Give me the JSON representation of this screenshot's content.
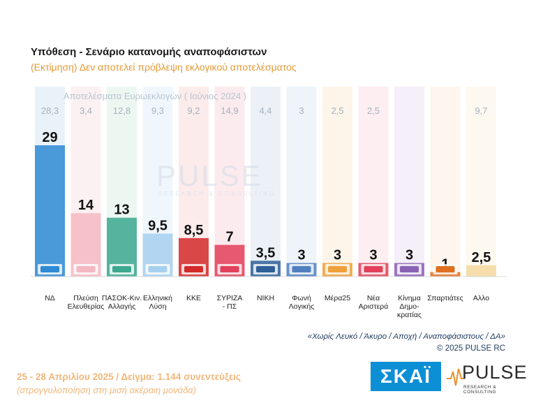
{
  "header": {
    "title": "Υπόθεση - Σενάριο κατανομής αναποφάσιστων",
    "subtitle": "(Εκτίμηση)   Δεν αποτελεί πρόβλεψη εκλογικού αποτελέσματος"
  },
  "chart_data": {
    "type": "bar",
    "euro_title": "Αποτελέσματα Ευρωεκλογών  ( Ιούνιος 2024 )",
    "categories": [
      "ΝΔ",
      "Πλεύση Ελευθερίας",
      "ΠΑΣΟΚ-Κιν. Αλλαγής",
      "Ελληνική Λύση",
      "ΚΚΕ",
      "ΣΥΡΙΖΑ - ΠΣ",
      "ΝΙΚΗ",
      "Φωνή Λογικής",
      "Μέρα25",
      "Νέα Αριστερά",
      "Κίνημα Δημοκρατίας",
      "Σπαρτιάτες",
      "Άλλο"
    ],
    "category_lines": [
      [
        "ΝΔ"
      ],
      [
        "Πλεύση",
        "Ελευθερίας"
      ],
      [
        "ΠΑΣΟΚ-Κιν.",
        "Αλλαγής"
      ],
      [
        "Ελληνική",
        "Λύση"
      ],
      [
        "ΚΚΕ"
      ],
      [
        "ΣΥΡΙΖΑ",
        "- ΠΣ"
      ],
      [
        "ΝΙΚΗ"
      ],
      [
        "Φωνή",
        "Λογικής"
      ],
      [
        "Μέρα25"
      ],
      [
        "Νέα",
        "Αριστερά"
      ],
      [
        "Κίνημα",
        "Δημο-",
        "κρατίας"
      ],
      [
        "Σπαρτιάτες"
      ],
      [
        "Αλλο"
      ]
    ],
    "values": [
      29,
      14,
      13,
      9.5,
      8.5,
      7,
      3.5,
      3,
      3,
      3,
      3,
      1,
      2.5
    ],
    "value_labels": [
      "29",
      "14",
      "13",
      "9,5",
      "8,5",
      "7",
      "3,5",
      "3",
      "3",
      "3",
      "3",
      "1",
      "2,5"
    ],
    "euro_values": [
      "28,3",
      "3,4",
      "12,8",
      "9,3",
      "9,2",
      "14,9",
      "4,4",
      "3",
      "2,5",
      "2,5",
      "",
      "",
      "9,7"
    ],
    "colors": [
      "#2e8ad4",
      "#f4b8c2",
      "#3ca88f",
      "#a7d0ee",
      "#d42a2a",
      "#e2405a",
      "#2f5f99",
      "#4f7fbf",
      "#f0a03a",
      "#e2405a",
      "#8a62b5",
      "#e07020",
      "#f3d9a0"
    ],
    "column_bg": [
      "#dce9f5",
      "#f9e6ea",
      "#dff1ea",
      "#e6f1fa",
      "#f9dede",
      "#fadde2",
      "#e0e8f2",
      "#e3ecf7",
      "#fcefdb",
      "#fbe3e7",
      "#ece4f4",
      "#fdeee2",
      "#fbf4e6"
    ],
    "icons": [
      "nd-logo",
      "plefsi-logo",
      "pasok-logo",
      "elliniki-lysi-logo",
      "kke-logo",
      "syriza-logo",
      "niki-logo",
      "foni-logikis-logo",
      "mera25-logo",
      "nea-aristera-logo",
      "kinima-dimokratias-logo",
      "spartiates-logo",
      ""
    ],
    "ylim": [
      0,
      30
    ]
  },
  "watermark": {
    "word": "PULSE",
    "tag": "RESEARCH & CONSULTING"
  },
  "footnote": {
    "line1": "«Χωρίς Λευκό / Άκυρο / Αποχή / Αναποφάσιστους / ΔΑ»",
    "line2": "©  2025  PULSE RC"
  },
  "bottom": {
    "date_sample": "25 - 28 Απριλίου 2025  /  Δείγμα:  1.144 συνεντεύξεις",
    "rounding_note": "(στρογγυλοποίηση στη μισή ακέραιη μονάδα)"
  },
  "logos": {
    "skai": "ΣΚΑΪ",
    "pulse": "PULSE",
    "pulse_tag": "RESEARCH & CONSULTING"
  }
}
